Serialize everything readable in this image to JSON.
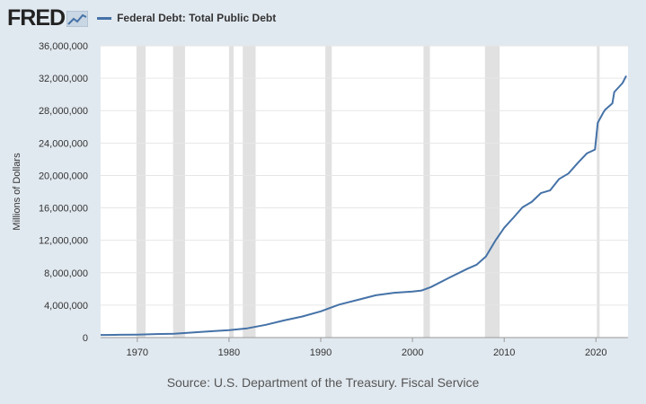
{
  "header": {
    "logo_text": "FRED",
    "legend_label": "Federal Debt: Total Public Debt"
  },
  "source": "Source: U.S. Department of the Treasury. Fiscal Service",
  "colors": {
    "series_line": "#4572a7",
    "recession_band": "#e1e1e1",
    "background": "#e1e9f0",
    "plot_background": "#ffffff"
  },
  "chart_data": {
    "type": "line",
    "title": "",
    "xlabel": "",
    "ylabel": "Millions of Dollars",
    "xlim": [
      1966,
      2023.5
    ],
    "ylim": [
      0,
      36000000
    ],
    "x_ticks": [
      1970,
      1980,
      1990,
      2000,
      2010,
      2020
    ],
    "y_ticks": [
      0,
      4000000,
      8000000,
      12000000,
      16000000,
      20000000,
      24000000,
      28000000,
      32000000,
      36000000
    ],
    "y_tick_labels": [
      "0",
      "4,000,000",
      "8,000,000",
      "12,000,000",
      "16,000,000",
      "20,000,000",
      "24,000,000",
      "28,000,000",
      "32,000,000",
      "36,000,000"
    ],
    "recessions": [
      [
        1969.9,
        1970.9
      ],
      [
        1973.9,
        1975.2
      ],
      [
        1980.0,
        1980.5
      ],
      [
        1981.5,
        1982.9
      ],
      [
        1990.5,
        1991.2
      ],
      [
        2001.2,
        2001.9
      ],
      [
        2007.9,
        2009.5
      ],
      [
        2020.1,
        2020.4
      ]
    ],
    "series": [
      {
        "name": "Federal Debt: Total Public Debt",
        "points": [
          [
            1966,
            320000
          ],
          [
            1968,
            345000
          ],
          [
            1970,
            370000
          ],
          [
            1972,
            427000
          ],
          [
            1974,
            475000
          ],
          [
            1976,
            620000
          ],
          [
            1978,
            772000
          ],
          [
            1980,
            907000
          ],
          [
            1982,
            1140000
          ],
          [
            1984,
            1570000
          ],
          [
            1986,
            2120000
          ],
          [
            1988,
            2600000
          ],
          [
            1990,
            3230000
          ],
          [
            1992,
            4060000
          ],
          [
            1994,
            4640000
          ],
          [
            1996,
            5220000
          ],
          [
            1998,
            5530000
          ],
          [
            2000,
            5670000
          ],
          [
            2001,
            5800000
          ],
          [
            2002,
            6230000
          ],
          [
            2004,
            7380000
          ],
          [
            2006,
            8500000
          ],
          [
            2007,
            9000000
          ],
          [
            2008,
            9990000
          ],
          [
            2009,
            11900000
          ],
          [
            2010,
            13550000
          ],
          [
            2011,
            14790000
          ],
          [
            2012,
            16070000
          ],
          [
            2013,
            16740000
          ],
          [
            2014,
            17820000
          ],
          [
            2015,
            18150000
          ],
          [
            2016,
            19570000
          ],
          [
            2017,
            20240000
          ],
          [
            2018,
            21520000
          ],
          [
            2019,
            22720000
          ],
          [
            2019.9,
            23200000
          ],
          [
            2020.2,
            26500000
          ],
          [
            2020.8,
            27750000
          ],
          [
            2021,
            28100000
          ],
          [
            2021.8,
            28900000
          ],
          [
            2022,
            30300000
          ],
          [
            2022.5,
            30900000
          ],
          [
            2022.9,
            31400000
          ],
          [
            2023.3,
            32300000
          ]
        ]
      }
    ]
  }
}
